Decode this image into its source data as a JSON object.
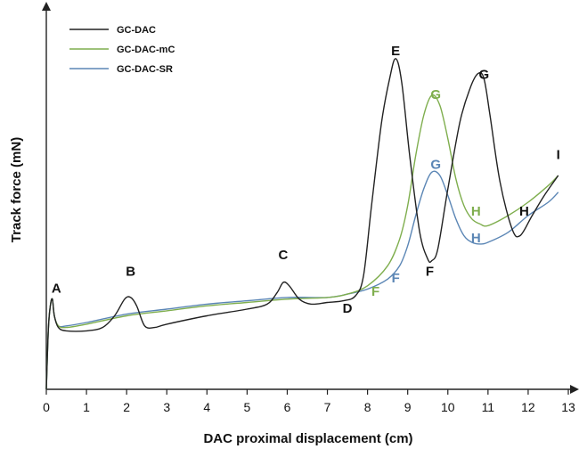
{
  "chart_data": {
    "type": "line",
    "xlabel": "DAC proximal displacement (cm)",
    "ylabel": "Track force (mN)",
    "xlim": [
      0,
      13
    ],
    "ylim": [
      0,
      100
    ],
    "x_ticks": [
      "0",
      "1",
      "2",
      "3",
      "4",
      "5",
      "6",
      "7",
      "8",
      "9",
      "10",
      "11",
      "12",
      "13"
    ],
    "grid": false,
    "legend_position": "top-left",
    "colors": {
      "GC-DAC": "#222222",
      "GC-DAC-mC": "#7fae4e",
      "GC-DAC-SR": "#5b86b5"
    },
    "series": [
      {
        "name": "GC-DAC",
        "x": [
          0,
          0.05,
          0.1,
          0.15,
          0.2,
          0.3,
          0.5,
          1.0,
          1.4,
          1.7,
          1.95,
          2.1,
          2.25,
          2.45,
          2.7,
          3.0,
          4.0,
          5.0,
          5.5,
          5.75,
          5.9,
          6.05,
          6.3,
          6.6,
          7.0,
          7.4,
          7.7,
          7.9,
          8.1,
          8.35,
          8.55,
          8.7,
          8.85,
          9.05,
          9.3,
          9.5,
          9.6,
          9.75,
          10.0,
          10.3,
          10.55,
          10.75,
          10.9,
          11.05,
          11.3,
          11.6,
          11.8,
          12.1,
          12.4,
          12.75
        ],
        "y": [
          0,
          18,
          25,
          27,
          22,
          18.5,
          17.5,
          17.5,
          18.5,
          22,
          27,
          27.5,
          25,
          19,
          18.5,
          19.5,
          22,
          24,
          25.5,
          29,
          32,
          31,
          27,
          25.5,
          26,
          26.5,
          28,
          34,
          55,
          80,
          93,
          99,
          92,
          70,
          47,
          39,
          38.5,
          42,
          60,
          80,
          90,
          94.5,
          93,
          82,
          62,
          48,
          46,
          52,
          58,
          64
        ]
      },
      {
        "name": "GC-DAC-mC",
        "x": [
          0,
          0.05,
          0.1,
          0.15,
          0.2,
          0.3,
          0.5,
          1.0,
          2.0,
          3.0,
          4.0,
          5.0,
          6.0,
          7.0,
          7.5,
          8.0,
          8.5,
          8.8,
          9.0,
          9.2,
          9.4,
          9.6,
          9.8,
          10.0,
          10.2,
          10.4,
          10.6,
          10.8,
          11.0,
          11.5,
          12.0,
          12.5,
          12.75
        ],
        "y": [
          0,
          18,
          25,
          27,
          22,
          19,
          18.5,
          19.5,
          22,
          23.5,
          25,
          26,
          27,
          27.5,
          28.5,
          31,
          37,
          45,
          55,
          70,
          82,
          88,
          85,
          75,
          63,
          55,
          51,
          49.5,
          49,
          52,
          56,
          61,
          64
        ]
      },
      {
        "name": "GC-DAC-SR",
        "x": [
          0,
          0.05,
          0.1,
          0.15,
          0.2,
          0.3,
          0.5,
          1.0,
          2.0,
          3.0,
          4.0,
          5.0,
          6.0,
          7.0,
          7.5,
          8.0,
          8.5,
          8.8,
          9.0,
          9.2,
          9.4,
          9.6,
          9.8,
          10.0,
          10.2,
          10.4,
          10.6,
          10.8,
          11.0,
          11.5,
          12.0,
          12.5,
          12.75
        ],
        "y": [
          0,
          18,
          25,
          27,
          22,
          19,
          19,
          20,
          22.5,
          24,
          25.5,
          26.5,
          27.5,
          27.5,
          28.5,
          30,
          33,
          37,
          43,
          52,
          60,
          65,
          64,
          58,
          51,
          46,
          44,
          43.5,
          44,
          47,
          52,
          56,
          59
        ]
      }
    ],
    "annotations": [
      {
        "text": "A",
        "x": 0.25,
        "y": 29,
        "series": "GC-DAC"
      },
      {
        "text": "B",
        "x": 2.1,
        "y": 34,
        "series": "GC-DAC"
      },
      {
        "text": "C",
        "x": 5.9,
        "y": 39,
        "series": "GC-DAC"
      },
      {
        "text": "D",
        "x": 7.5,
        "y": 23,
        "series": "GC-DAC"
      },
      {
        "text": "E",
        "x": 8.7,
        "y": 100,
        "series": "GC-DAC"
      },
      {
        "text": "F",
        "x": 9.55,
        "y": 34,
        "series": "GC-DAC"
      },
      {
        "text": "G",
        "x": 10.9,
        "y": 93,
        "series": "GC-DAC"
      },
      {
        "text": "H",
        "x": 11.9,
        "y": 52,
        "series": "GC-DAC"
      },
      {
        "text": "I",
        "x": 12.75,
        "y": 69,
        "series": "GC-DAC"
      },
      {
        "text": "F",
        "x": 8.2,
        "y": 28,
        "series": "GC-DAC-mC"
      },
      {
        "text": "G",
        "x": 9.7,
        "y": 87,
        "series": "GC-DAC-mC"
      },
      {
        "text": "H",
        "x": 10.7,
        "y": 52,
        "series": "GC-DAC-mC"
      },
      {
        "text": "F",
        "x": 8.7,
        "y": 32,
        "series": "GC-DAC-SR"
      },
      {
        "text": "G",
        "x": 9.7,
        "y": 66,
        "series": "GC-DAC-SR"
      },
      {
        "text": "H",
        "x": 10.7,
        "y": 44,
        "series": "GC-DAC-SR"
      }
    ]
  }
}
